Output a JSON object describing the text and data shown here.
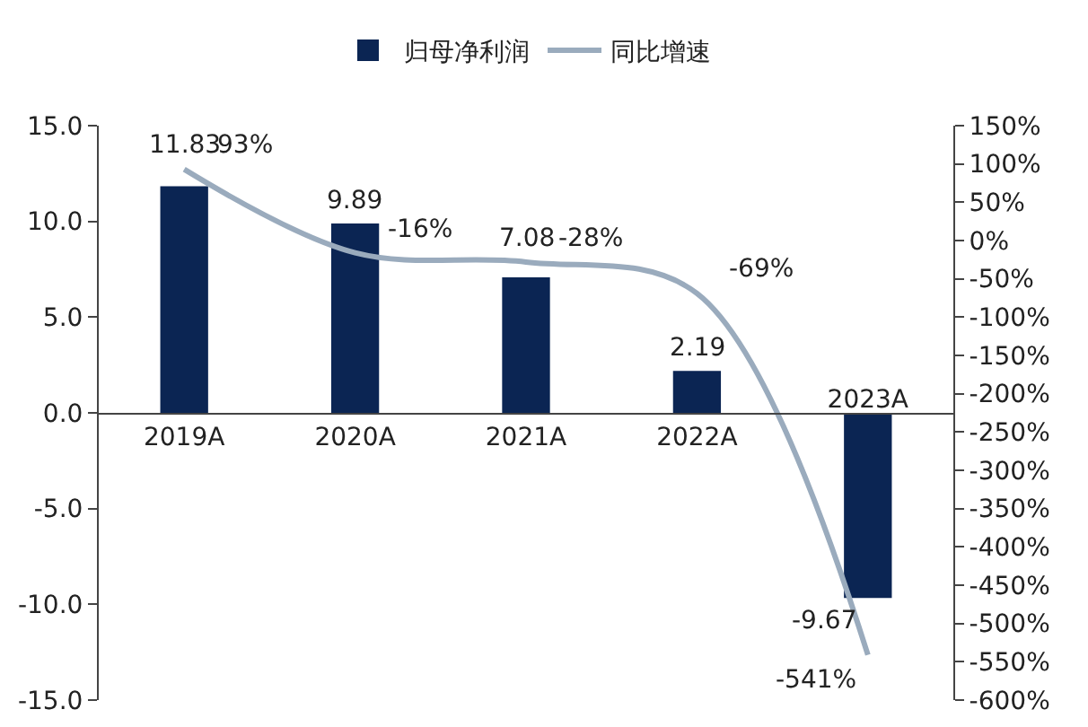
{
  "chart_data": {
    "type": "bar",
    "categories": [
      "2019A",
      "2020A",
      "2021A",
      "2022A",
      "2023A"
    ],
    "series": [
      {
        "name": "归母净利润",
        "color": "#0b2553",
        "values": [
          11.83,
          9.89,
          7.08,
          2.19,
          -9.67
        ],
        "value_labels": [
          "11.83",
          "9.89",
          "7.08",
          "2.19",
          "-9.67"
        ]
      },
      {
        "name": "同比增速",
        "type": "line",
        "axis": "y2",
        "color": "#9aabbd",
        "values": [
          93,
          -16,
          -28,
          -69,
          -541
        ],
        "value_labels": [
          "93%",
          "-16%",
          "-28%",
          "-69%",
          "-541%"
        ]
      }
    ],
    "ylim": [
      -15,
      15
    ],
    "yticks": [
      {
        "value": 15,
        "label": "15.0"
      },
      {
        "value": 10,
        "label": "10.0"
      },
      {
        "value": 5,
        "label": "5.0"
      },
      {
        "value": 0,
        "label": "0.0"
      },
      {
        "value": -5,
        "label": "-5.0"
      },
      {
        "value": -10,
        "label": "-10.0"
      },
      {
        "value": -15,
        "label": "-15.0"
      }
    ],
    "y2lim": [
      -600,
      150
    ],
    "y2ticks": [
      {
        "value": 150,
        "label": "150%"
      },
      {
        "value": 100,
        "label": "100%"
      },
      {
        "value": 50,
        "label": "50%"
      },
      {
        "value": 0,
        "label": "0%"
      },
      {
        "value": -50,
        "label": "-50%"
      },
      {
        "value": -100,
        "label": "-100%"
      },
      {
        "value": -150,
        "label": "-150%"
      },
      {
        "value": -200,
        "label": "-200%"
      },
      {
        "value": -250,
        "label": "-250%"
      },
      {
        "value": -300,
        "label": "-300%"
      },
      {
        "value": -350,
        "label": "-350%"
      },
      {
        "value": -400,
        "label": "-400%"
      },
      {
        "value": -450,
        "label": "-450%"
      },
      {
        "value": -500,
        "label": "-500%"
      },
      {
        "value": -550,
        "label": "-550%"
      },
      {
        "value": -600,
        "label": "-600%"
      }
    ],
    "legend": "top",
    "grid": false
  }
}
